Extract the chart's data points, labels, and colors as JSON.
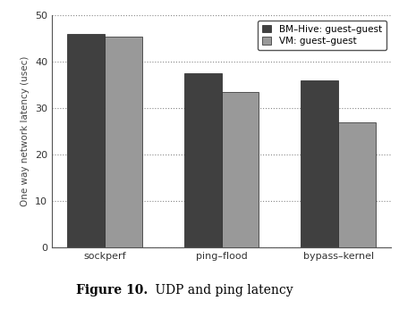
{
  "categories": [
    "sockperf",
    "ping–flood",
    "bypass–kernel"
  ],
  "series": [
    {
      "label": "BM–Hive: guest–guest",
      "values": [
        46.0,
        37.5,
        36.0
      ],
      "color": "#404040"
    },
    {
      "label": "VM: guest–guest",
      "values": [
        45.5,
        33.5,
        27.0
      ],
      "color": "#999999"
    }
  ],
  "ylabel": "One way network latency (usec)",
  "ylim": [
    0,
    50
  ],
  "yticks": [
    0,
    10,
    20,
    30,
    40,
    50
  ],
  "bar_width": 0.32,
  "grid_color": "#888888",
  "caption_bold": "Figure 10.",
  "caption_normal": " UDP and ping latency"
}
